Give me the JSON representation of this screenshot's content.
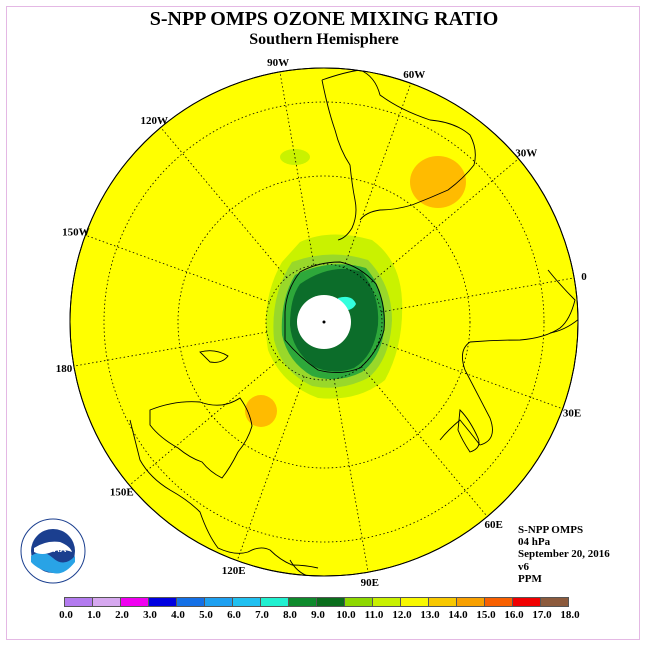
{
  "header": {
    "title": "S-NPP OMPS OZONE MIXING RATIO",
    "subtitle": "Southern Hemisphere"
  },
  "map": {
    "background_color": "#ffff00",
    "longitude_labels": [
      "90W",
      "60W",
      "30W",
      "0",
      "30E",
      "60E",
      "90E",
      "120E",
      "150E",
      "180",
      "150W",
      "120W"
    ],
    "regions_colors": {
      "light_green": "#c9f200",
      "mid_green": "#99d82a",
      "green": "#2ea83a",
      "dark_green": "#0c6d2a",
      "cyan": "#33ffdd",
      "orange": "#ffbb00",
      "pole": "#ffffff"
    }
  },
  "info": {
    "line1": "S-NPP OMPS",
    "line2": "04 hPa",
    "line3": "September 20, 2016",
    "line4": "v6",
    "line5": "PPM"
  },
  "colorbar": {
    "colors": [
      "#b37bef",
      "#d6a8ef",
      "#f000f0",
      "#0000e0",
      "#1470e6",
      "#1ea0f0",
      "#20c0f0",
      "#20f0d0",
      "#0e8a2c",
      "#0a6e1c",
      "#8ed800",
      "#c8f000",
      "#f8f800",
      "#f8c800",
      "#f8a000",
      "#f86000",
      "#f00000",
      "#8c5a3c"
    ],
    "labels": [
      "0.0",
      "1.0",
      "2.0",
      "3.0",
      "4.0",
      "5.0",
      "6.0",
      "7.0",
      "8.0",
      "9.0",
      "10.0",
      "11.0",
      "12.0",
      "13.0",
      "14.0",
      "15.0",
      "16.0",
      "17.0",
      "18.0"
    ]
  },
  "logo": {
    "text": "NOAA",
    "ring_text": "NATIONAL OCEANIC AND ATMOSPHERIC ADMINISTRATION · U.S. DEPARTMENT OF COMMERCE"
  }
}
